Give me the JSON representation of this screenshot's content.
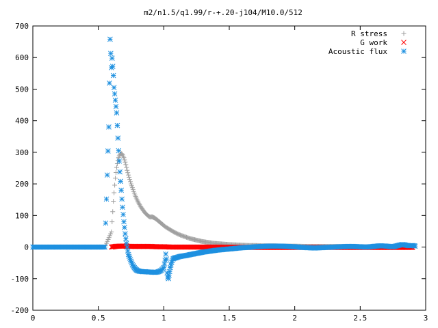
{
  "chart_data": {
    "type": "scatter",
    "title": "m2/n1.5/q1.99/r-+.20-j104/M10.0/512",
    "xlabel": "",
    "ylabel": "",
    "xlim": [
      0,
      3
    ],
    "ylim": [
      -200,
      700
    ],
    "x_ticks": [
      0,
      0.5,
      1,
      1.5,
      2,
      2.5,
      3
    ],
    "x_tick_labels": [
      "0",
      "0.5",
      "1",
      "1.5",
      "2",
      "2.5",
      "3"
    ],
    "y_ticks": [
      -200,
      -100,
      0,
      100,
      200,
      300,
      400,
      500,
      600,
      700
    ],
    "y_tick_labels": [
      "-200",
      "-100",
      "0",
      "100",
      "200",
      "300",
      "400",
      "500",
      "600",
      "700"
    ],
    "grid": false,
    "legend_position": "top-right",
    "series": [
      {
        "name": "R stress",
        "marker": "plus",
        "color": "#a0a0a0",
        "points": [
          [
            0.0,
            0
          ],
          [
            0.1,
            0
          ],
          [
            0.2,
            0
          ],
          [
            0.3,
            0
          ],
          [
            0.4,
            0
          ],
          [
            0.5,
            0
          ],
          [
            0.55,
            0
          ],
          [
            0.6,
            48
          ],
          [
            0.605,
            80
          ],
          [
            0.61,
            112
          ],
          [
            0.615,
            145
          ],
          [
            0.62,
            172
          ],
          [
            0.625,
            196
          ],
          [
            0.63,
            218
          ],
          [
            0.635,
            236
          ],
          [
            0.64,
            252
          ],
          [
            0.645,
            264
          ],
          [
            0.65,
            275
          ],
          [
            0.655,
            283
          ],
          [
            0.66,
            289
          ],
          [
            0.665,
            293
          ],
          [
            0.67,
            295
          ],
          [
            0.675,
            296
          ],
          [
            0.68,
            295
          ],
          [
            0.685,
            292
          ],
          [
            0.69,
            288
          ],
          [
            0.695,
            283
          ],
          [
            0.7,
            276
          ],
          [
            0.705,
            269
          ],
          [
            0.71,
            261
          ],
          [
            0.715,
            252
          ],
          [
            0.72,
            243
          ],
          [
            0.73,
            228
          ],
          [
            0.74,
            214
          ],
          [
            0.75,
            200
          ],
          [
            0.76,
            188
          ],
          [
            0.77,
            176
          ],
          [
            0.78,
            165
          ],
          [
            0.79,
            155
          ],
          [
            0.8,
            146
          ],
          [
            0.81,
            138
          ],
          [
            0.82,
            130
          ],
          [
            0.83,
            124
          ],
          [
            0.84,
            118
          ],
          [
            0.85,
            112
          ],
          [
            0.86,
            107
          ],
          [
            0.87,
            103
          ],
          [
            0.88,
            99
          ],
          [
            0.89,
            96
          ],
          [
            0.9,
            95
          ],
          [
            0.91,
            96
          ],
          [
            0.92,
            94
          ],
          [
            0.93,
            92
          ],
          [
            0.94,
            89
          ],
          [
            0.95,
            86
          ],
          [
            0.96,
            82
          ],
          [
            0.97,
            79
          ],
          [
            0.98,
            75
          ],
          [
            0.99,
            72
          ],
          [
            1.0,
            68
          ],
          [
            1.02,
            62
          ],
          [
            1.04,
            57
          ],
          [
            1.06,
            52
          ],
          [
            1.08,
            47
          ],
          [
            1.1,
            43
          ],
          [
            1.12,
            39
          ],
          [
            1.14,
            36
          ],
          [
            1.16,
            33
          ],
          [
            1.18,
            30
          ],
          [
            1.2,
            27
          ],
          [
            1.23,
            24
          ],
          [
            1.26,
            21
          ],
          [
            1.29,
            18
          ],
          [
            1.32,
            16
          ],
          [
            1.35,
            14
          ],
          [
            1.38,
            12
          ],
          [
            1.41,
            11
          ],
          [
            1.44,
            10
          ],
          [
            1.47,
            9
          ],
          [
            1.5,
            8
          ],
          [
            1.55,
            7
          ],
          [
            1.6,
            6
          ],
          [
            1.65,
            5
          ],
          [
            1.7,
            5
          ],
          [
            1.75,
            4
          ],
          [
            1.8,
            4
          ],
          [
            1.85,
            4
          ],
          [
            1.9,
            3
          ],
          [
            1.95,
            3
          ],
          [
            2.0,
            3
          ],
          [
            2.1,
            2
          ],
          [
            2.2,
            2
          ],
          [
            2.3,
            2
          ],
          [
            2.4,
            2
          ],
          [
            2.5,
            1
          ],
          [
            2.6,
            1
          ],
          [
            2.7,
            1
          ],
          [
            2.8,
            1
          ],
          [
            2.9,
            1
          ]
        ]
      },
      {
        "name": "G work",
        "marker": "cross",
        "color": "#ff0000",
        "points": [
          [
            0.6,
            0
          ],
          [
            0.63,
            2
          ],
          [
            0.66,
            3
          ],
          [
            0.7,
            3
          ],
          [
            0.75,
            2
          ],
          [
            0.8,
            2
          ],
          [
            0.85,
            2
          ],
          [
            0.9,
            2
          ],
          [
            0.95,
            1
          ],
          [
            1.0,
            1
          ],
          [
            1.05,
            0
          ],
          [
            1.1,
            0
          ],
          [
            1.2,
            0
          ],
          [
            1.3,
            0
          ],
          [
            1.4,
            0
          ],
          [
            1.5,
            -1
          ],
          [
            1.6,
            -1
          ],
          [
            1.7,
            -1
          ],
          [
            1.8,
            -1
          ],
          [
            1.9,
            -1
          ],
          [
            2.0,
            -1
          ],
          [
            2.1,
            -1
          ],
          [
            2.2,
            -1
          ],
          [
            2.3,
            -1
          ],
          [
            2.4,
            -1
          ],
          [
            2.5,
            -1
          ],
          [
            2.6,
            -1
          ],
          [
            2.7,
            -1
          ],
          [
            2.8,
            -1
          ],
          [
            2.9,
            -1
          ]
        ]
      },
      {
        "name": "Acoustic flux",
        "marker": "star",
        "color": "#1e90e0",
        "points": [
          [
            0.0,
            0
          ],
          [
            0.1,
            0
          ],
          [
            0.2,
            0
          ],
          [
            0.3,
            0
          ],
          [
            0.4,
            0
          ],
          [
            0.5,
            0
          ],
          [
            0.55,
            0
          ],
          [
            0.58,
            380
          ],
          [
            0.59,
            658
          ],
          [
            0.6,
            568
          ],
          [
            0.605,
            598
          ],
          [
            0.61,
            572
          ],
          [
            0.615,
            543
          ],
          [
            0.62,
            505
          ],
          [
            0.63,
            465
          ],
          [
            0.64,
            425
          ],
          [
            0.645,
            385
          ],
          [
            0.65,
            345
          ],
          [
            0.655,
            305
          ],
          [
            0.66,
            272
          ],
          [
            0.665,
            238
          ],
          [
            0.67,
            208
          ],
          [
            0.675,
            180
          ],
          [
            0.68,
            152
          ],
          [
            0.685,
            126
          ],
          [
            0.69,
            103
          ],
          [
            0.695,
            80
          ],
          [
            0.7,
            62
          ],
          [
            0.705,
            42
          ],
          [
            0.71,
            26
          ],
          [
            0.715,
            12
          ],
          [
            0.72,
            0
          ],
          [
            0.725,
            -12
          ],
          [
            0.73,
            -24
          ],
          [
            0.74,
            -35
          ],
          [
            0.75,
            -45
          ],
          [
            0.76,
            -55
          ],
          [
            0.77,
            -62
          ],
          [
            0.78,
            -68
          ],
          [
            0.79,
            -72
          ],
          [
            0.8,
            -75
          ],
          [
            0.82,
            -77
          ],
          [
            0.84,
            -78
          ],
          [
            0.86,
            -78
          ],
          [
            0.88,
            -79
          ],
          [
            0.9,
            -79
          ],
          [
            0.92,
            -80
          ],
          [
            0.94,
            -80
          ],
          [
            0.96,
            -78
          ],
          [
            0.98,
            -74
          ],
          [
            1.0,
            -65
          ],
          [
            1.01,
            -42
          ],
          [
            1.015,
            -22
          ],
          [
            1.02,
            -38
          ],
          [
            1.025,
            -82
          ],
          [
            1.03,
            -95
          ],
          [
            1.035,
            -100
          ],
          [
            1.04,
            -90
          ],
          [
            1.05,
            -65
          ],
          [
            1.06,
            -48
          ],
          [
            1.07,
            -38
          ],
          [
            1.08,
            -35
          ],
          [
            1.09,
            -34
          ],
          [
            1.1,
            -33
          ],
          [
            1.12,
            -30
          ],
          [
            1.15,
            -28
          ],
          [
            1.18,
            -26
          ],
          [
            1.2,
            -24
          ],
          [
            1.25,
            -20
          ],
          [
            1.3,
            -16
          ],
          [
            1.35,
            -13
          ],
          [
            1.4,
            -10
          ],
          [
            1.45,
            -8
          ],
          [
            1.5,
            -6
          ],
          [
            1.55,
            -4
          ],
          [
            1.6,
            -2
          ],
          [
            1.65,
            -1
          ],
          [
            1.7,
            1
          ],
          [
            1.75,
            2
          ],
          [
            1.8,
            3
          ],
          [
            1.85,
            3
          ],
          [
            1.9,
            3
          ],
          [
            1.95,
            2
          ],
          [
            2.0,
            1
          ],
          [
            2.05,
            -1
          ],
          [
            2.1,
            -2
          ],
          [
            2.15,
            -3
          ],
          [
            2.2,
            -2
          ],
          [
            2.25,
            -1
          ],
          [
            2.3,
            0
          ],
          [
            2.35,
            1
          ],
          [
            2.4,
            2
          ],
          [
            2.45,
            2
          ],
          [
            2.5,
            1
          ],
          [
            2.55,
            0
          ],
          [
            2.6,
            2
          ],
          [
            2.65,
            4
          ],
          [
            2.7,
            3
          ],
          [
            2.75,
            1
          ],
          [
            2.8,
            6
          ],
          [
            2.82,
            8
          ],
          [
            2.84,
            7
          ],
          [
            2.86,
            5
          ],
          [
            2.88,
            4
          ],
          [
            2.9,
            5
          ],
          [
            2.92,
            3
          ]
        ]
      }
    ]
  }
}
